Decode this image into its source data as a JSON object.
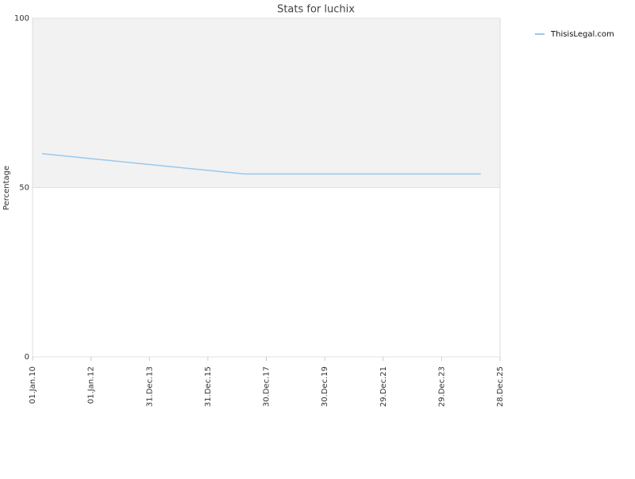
{
  "chart_data": {
    "type": "line",
    "title": "Stats for luchix",
    "y_label": "Percentage",
    "x": [
      "2010-05-01",
      "2017-04-01",
      "2025-05-01"
    ],
    "series": [
      {
        "name": "ThisisLegal.com",
        "color": "#99c8ee",
        "values": [
          60,
          54,
          54
        ]
      }
    ],
    "xlim": [
      "2010-01-01",
      "2025-12-28"
    ],
    "xticks": [
      {
        "value": "2010-01-01",
        "label": "01.Jan.10"
      },
      {
        "value": "2012-01-01",
        "label": "01.Jan.12"
      },
      {
        "value": "2013-12-31",
        "label": "31.Dec.13"
      },
      {
        "value": "2015-12-31",
        "label": "31.Dec.15"
      },
      {
        "value": "2017-12-30",
        "label": "30.Dec.17"
      },
      {
        "value": "2019-12-30",
        "label": "30.Dec.19"
      },
      {
        "value": "2021-12-29",
        "label": "29.Dec.21"
      },
      {
        "value": "2023-12-29",
        "label": "29.Dec.23"
      },
      {
        "value": "2025-12-28",
        "label": "28.Dec.25"
      }
    ],
    "ylim": [
      0,
      100
    ],
    "yticks": [
      0,
      50,
      100
    ],
    "plot_band": {
      "from": 50,
      "to": 100,
      "color": "#f2f2f2"
    },
    "legend": "top-right"
  }
}
